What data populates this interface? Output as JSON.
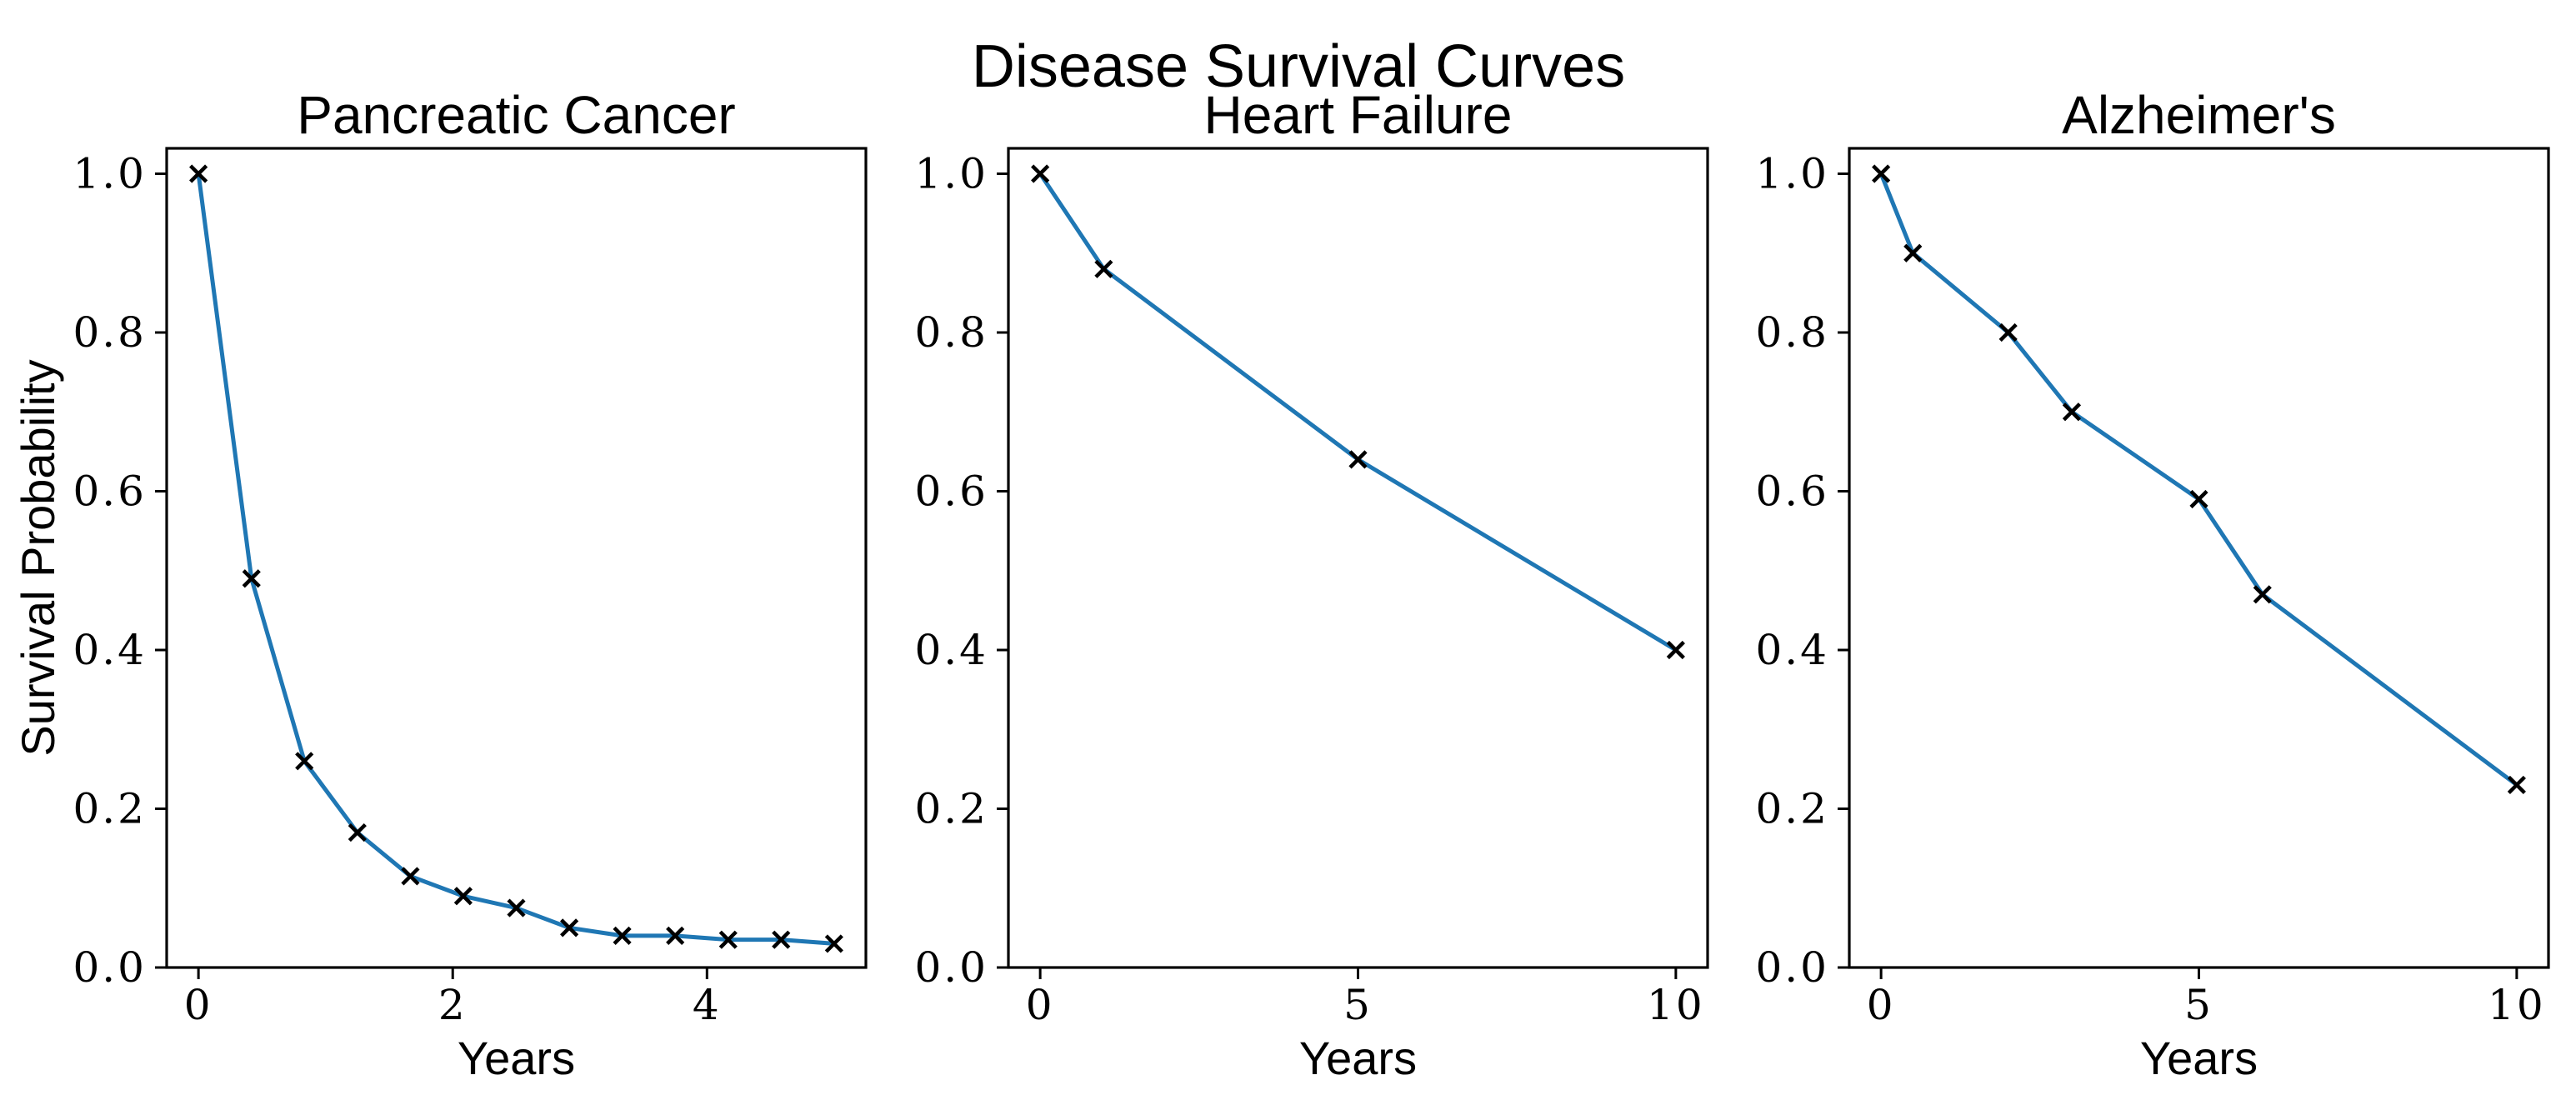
{
  "figure": {
    "suptitle": "Disease Survival Curves",
    "background_color": "#ffffff",
    "text_color": "#000000",
    "xlabel": "Years",
    "ylabel": "Survival Probability"
  },
  "chart_data": [
    {
      "type": "line",
      "title": "Pancreatic Cancer",
      "xlabel": "Years",
      "ylabel": "Survival Probability",
      "x": [
        0,
        0.417,
        0.833,
        1.25,
        1.667,
        2.083,
        2.5,
        2.917,
        3.333,
        3.75,
        4.167,
        4.583,
        5
      ],
      "y": [
        1.0,
        0.49,
        0.26,
        0.17,
        0.115,
        0.09,
        0.075,
        0.05,
        0.04,
        0.04,
        0.035,
        0.035,
        0.03
      ],
      "xlim": [
        -0.25,
        5.25
      ],
      "ylim": [
        0,
        1.032
      ],
      "xticks": [
        "0",
        "2",
        "4"
      ],
      "yticks": [
        "0.0",
        "0.2",
        "0.4",
        "0.6",
        "0.8",
        "1.0"
      ],
      "line_color": "#1f77b4",
      "marker": "x",
      "marker_color": "#000000",
      "grid": false,
      "legend": "none"
    },
    {
      "type": "line",
      "title": "Heart Failure",
      "xlabel": "Years",
      "ylabel": "",
      "x": [
        0,
        1,
        5,
        10
      ],
      "y": [
        1.0,
        0.88,
        0.64,
        0.4
      ],
      "xlim": [
        -0.5,
        10.5
      ],
      "ylim": [
        0,
        1.032
      ],
      "xticks": [
        "0",
        "5",
        "10"
      ],
      "yticks": [
        "0.0",
        "0.2",
        "0.4",
        "0.6",
        "0.8",
        "1.0"
      ],
      "line_color": "#1f77b4",
      "marker": "x",
      "marker_color": "#000000",
      "grid": false,
      "legend": "none"
    },
    {
      "type": "line",
      "title": "Alzheimer's",
      "xlabel": "Years",
      "ylabel": "",
      "x": [
        0,
        0.5,
        2,
        3,
        5,
        6,
        10
      ],
      "y": [
        1.0,
        0.9,
        0.8,
        0.7,
        0.59,
        0.47,
        0.23
      ],
      "xlim": [
        -0.5,
        10.5
      ],
      "ylim": [
        0,
        1.032
      ],
      "xticks": [
        "0",
        "5",
        "10"
      ],
      "yticks": [
        "0.0",
        "0.2",
        "0.4",
        "0.6",
        "0.8",
        "1.0"
      ],
      "line_color": "#1f77b4",
      "marker": "x",
      "marker_color": "#000000",
      "grid": false,
      "legend": "none"
    }
  ]
}
